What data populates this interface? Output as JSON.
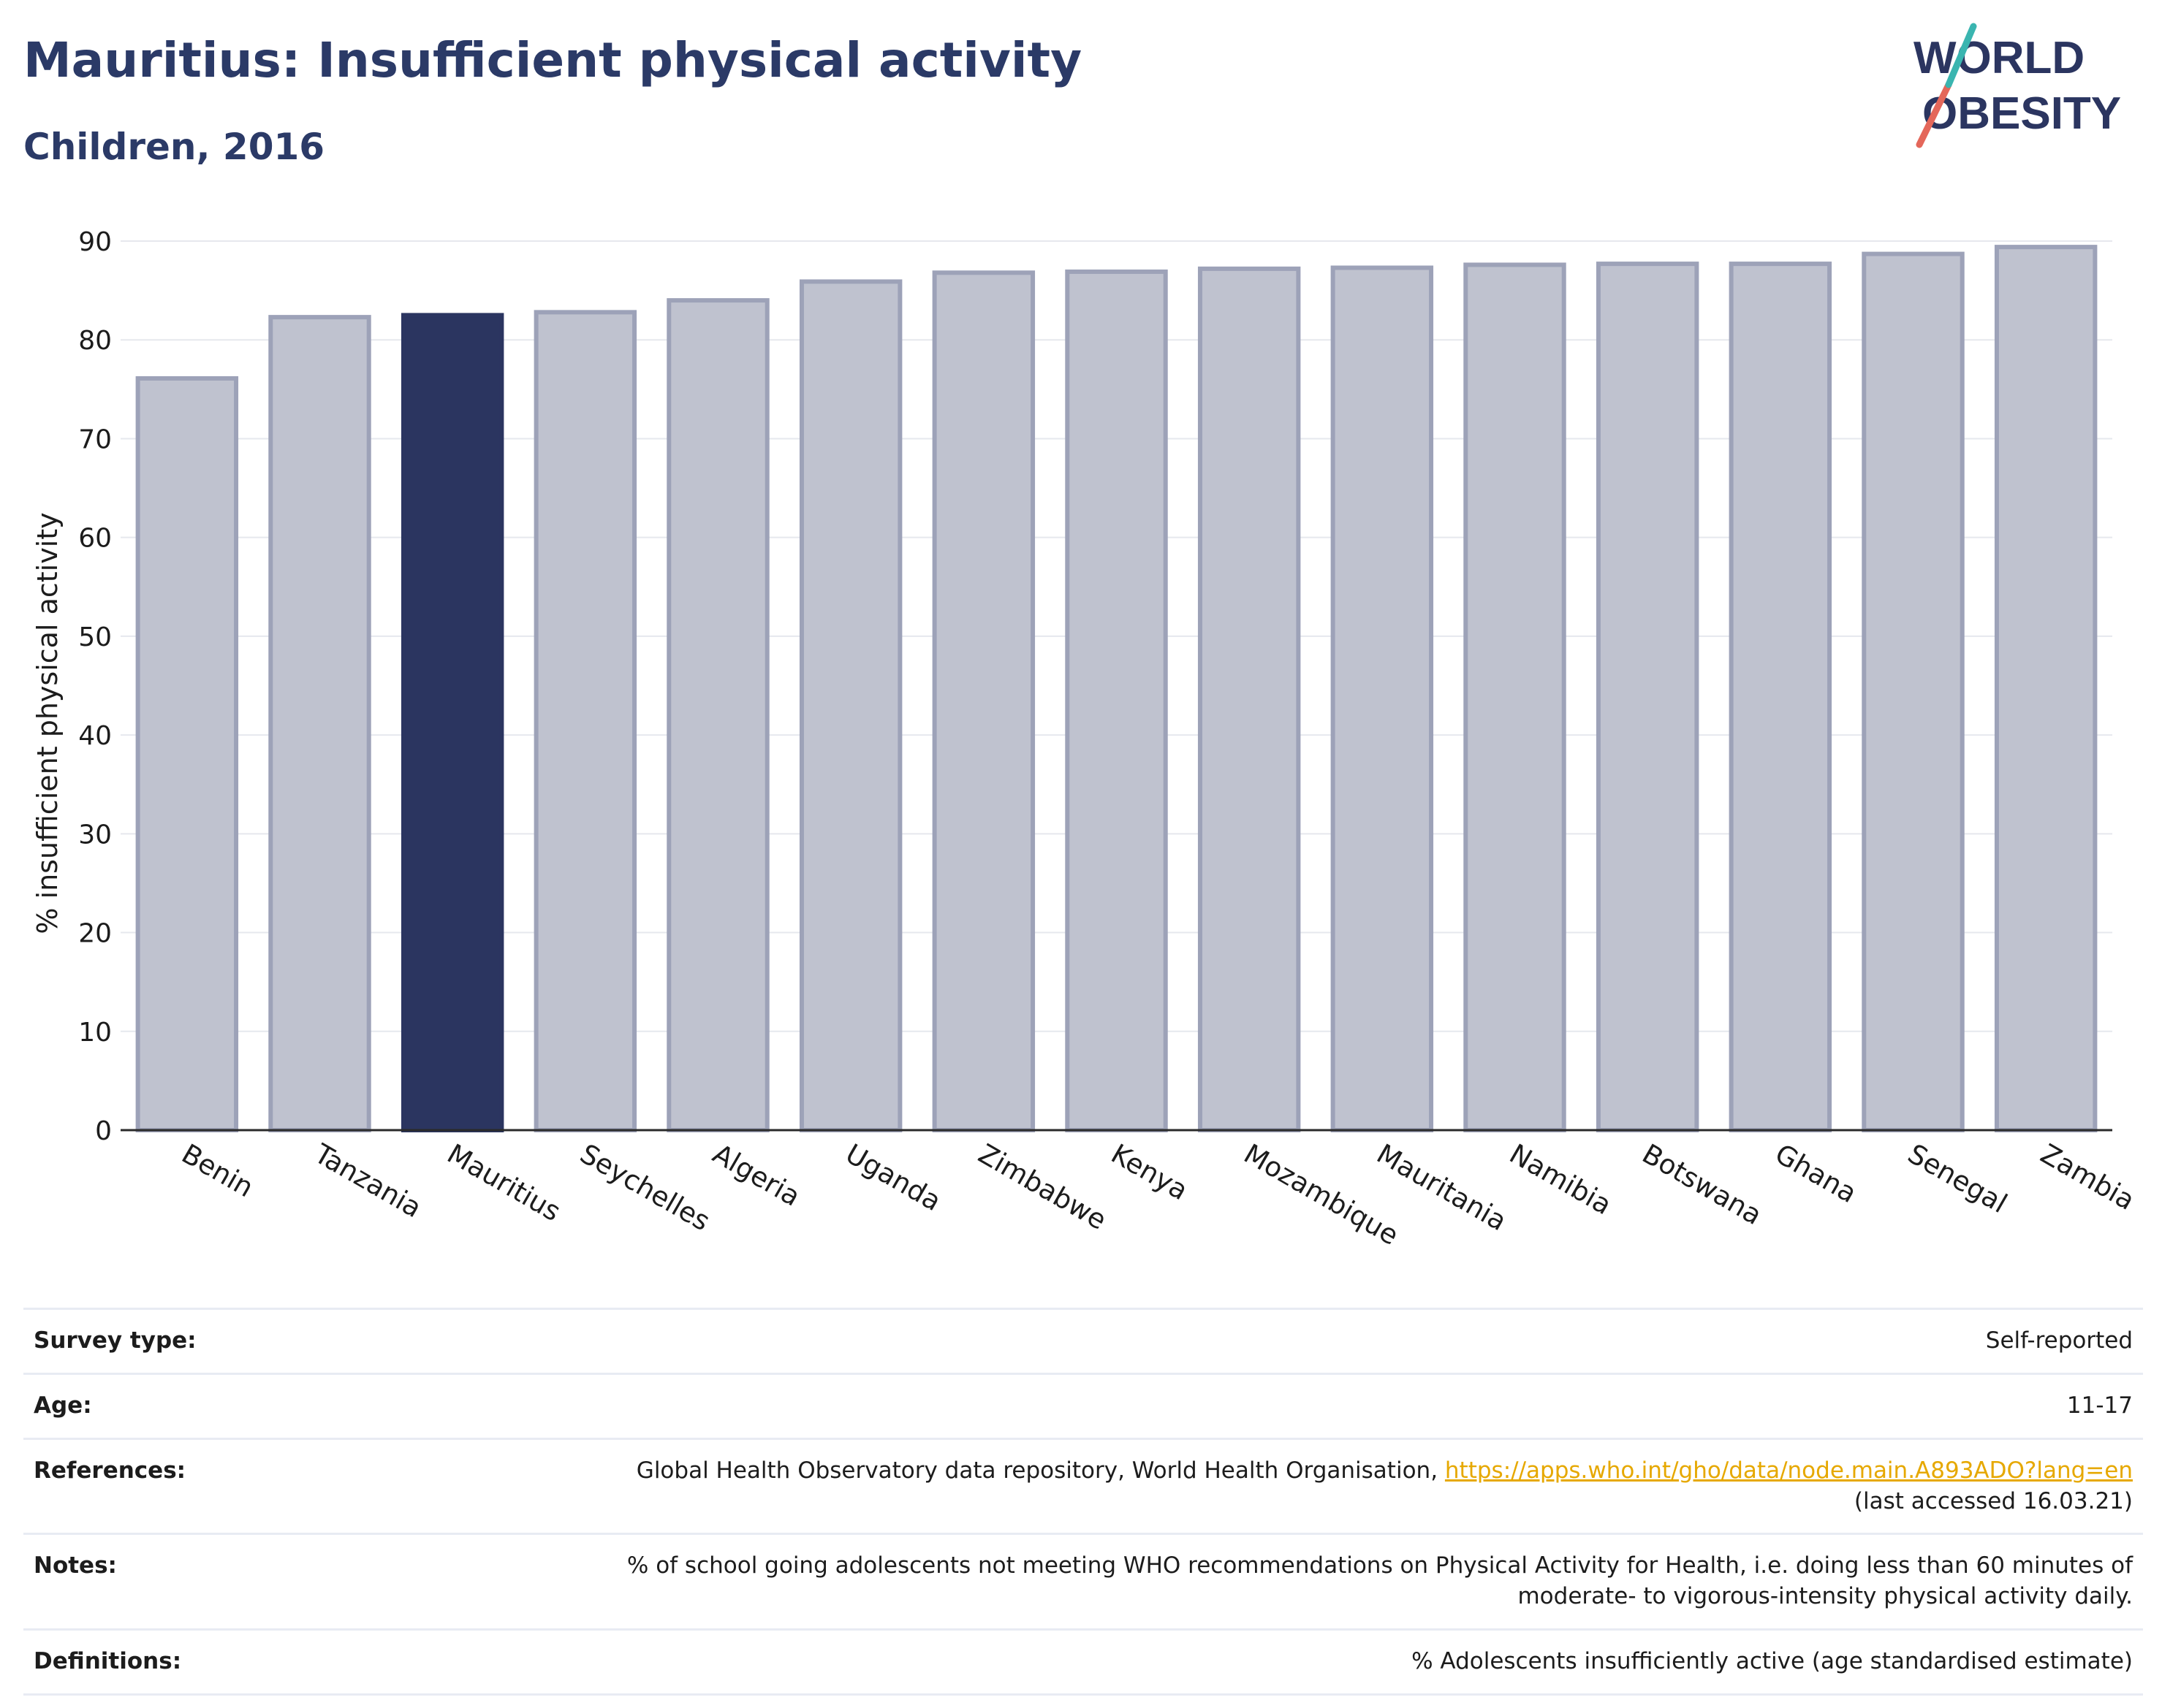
{
  "header": {
    "title": "Mauritius: Insufficient physical activity",
    "subtitle": "Children, 2016"
  },
  "logo": {
    "line1": "WORLD",
    "line2": "OBESITY"
  },
  "colors": {
    "highlight": "#2b3560",
    "bar": "#bfc2cf",
    "bar_border": "#9da2b8",
    "title": "#2b3a67",
    "link": "#e6a800"
  },
  "chart_data": {
    "type": "bar",
    "categories": [
      "Benin",
      "Tanzania",
      "Mauritius",
      "Seychelles",
      "Algeria",
      "Uganda",
      "Zimbabwe",
      "Kenya",
      "Mozambique",
      "Mauritania",
      "Namibia",
      "Botswana",
      "Ghana",
      "Senegal",
      "Zambia"
    ],
    "values": [
      76.1,
      82.3,
      82.5,
      82.8,
      84.0,
      85.9,
      86.8,
      86.9,
      87.2,
      87.3,
      87.6,
      87.7,
      87.7,
      88.7,
      89.4
    ],
    "highlight": "Mauritius",
    "ylabel": "% insufficient physical activity",
    "ylim": [
      0,
      90
    ],
    "yticks": [
      0,
      10,
      20,
      30,
      40,
      50,
      60,
      70,
      80,
      90
    ],
    "grid": true
  },
  "info": {
    "survey_type": {
      "label": "Survey type:",
      "value": "Self-reported"
    },
    "age": {
      "label": "Age:",
      "value": "11-17"
    },
    "references": {
      "label": "References:",
      "text": "Global Health Observatory data repository, World Health Organisation, ",
      "link": "https://apps.who.int/gho/data/node.main.A893ADO?lang=en",
      "accessed": "(last accessed 16.03.21)"
    },
    "notes": {
      "label": "Notes:",
      "line1": "% of school going adolescents not meeting WHO recommendations on Physical Activity for Health, i.e. doing less than 60 minutes of",
      "line2": "moderate- to vigorous-intensity physical activity daily."
    },
    "definitions": {
      "label": "Definitions:",
      "value": "% Adolescents insufficiently active (age standardised estimate)"
    }
  }
}
